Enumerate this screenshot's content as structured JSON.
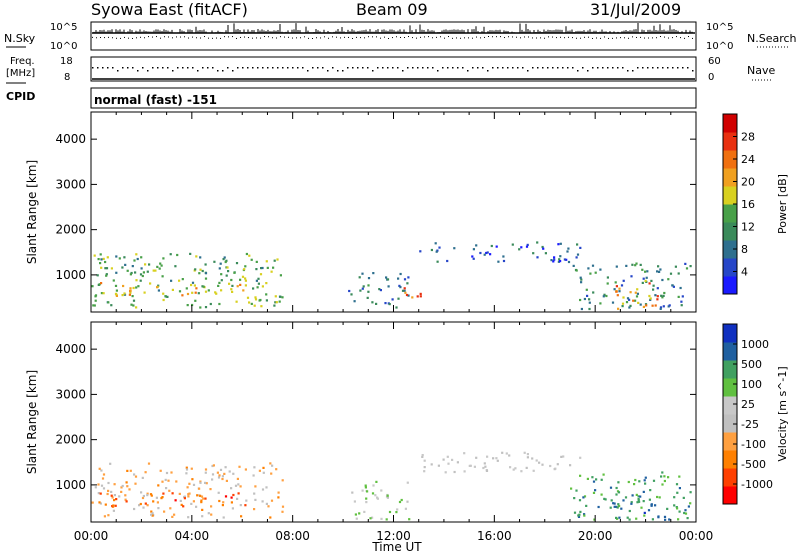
{
  "header": {
    "station": "Syowa East (fitACF)",
    "beam": "Beam 09",
    "date": "31/Jul/2009"
  },
  "top_panels": {
    "nsky_label": "N.Sky",
    "nsky_tick_top": "10^5",
    "nsky_tick_bottom": "10^0",
    "nsky_right_top": "10^5",
    "nsky_right_bottom": "10^0",
    "nsearch_label": "N.Search",
    "freq_label_line1": "Freq.",
    "freq_label_line2": "[MHz]",
    "freq_tick_top": "18",
    "freq_tick_bottom": "8",
    "nave_tick_top": "60",
    "nave_tick_bottom": "0",
    "nave_label": "Nave",
    "cpid_label": "CPID",
    "cpid_value": "normal (fast) -151"
  },
  "colors": {
    "power_scale": [
      "#1a1aff",
      "#2646c8",
      "#2e6f8e",
      "#3a8a5a",
      "#48a048",
      "#d8d020",
      "#f0a020",
      "#f07010",
      "#e83010",
      "#d00000"
    ],
    "velocity_scale": [
      "#ff0000",
      "#ff4000",
      "#ff8000",
      "#ffa040",
      "#c0c0c0",
      "#c8c8c8",
      "#60c040",
      "#40a060",
      "#2060a0",
      "#1030c0"
    ]
  },
  "chart_data": [
    {
      "type": "heatmap",
      "title": "",
      "ylabel": "Slant Range [km]",
      "xlabel": "",
      "yticks": [
        "1000",
        "2000",
        "3000",
        "4000"
      ],
      "ylim": [
        180,
        4600
      ],
      "colorbar_label": "Power [dB]",
      "colorbar_ticks": [
        "4",
        "8",
        "12",
        "16",
        "20",
        "24",
        "28"
      ],
      "colorbar_range": [
        0,
        32
      ],
      "regions": [
        {
          "t0": 0.0,
          "t1": 7.6,
          "r0": 300,
          "r1": 1500,
          "v": 14
        },
        {
          "t0": 0.3,
          "t1": 6.2,
          "r0": 550,
          "r1": 850,
          "v": 20
        },
        {
          "t0": 0.0,
          "t1": 2.0,
          "r0": 1000,
          "r1": 1500,
          "v": 12
        },
        {
          "t0": 10.2,
          "t1": 12.6,
          "r0": 250,
          "r1": 1100,
          "v": 8
        },
        {
          "t0": 12.3,
          "t1": 13.2,
          "r0": 400,
          "r1": 800,
          "v": 24
        },
        {
          "t0": 13.0,
          "t1": 19.5,
          "r0": 1300,
          "r1": 1750,
          "v": 6
        },
        {
          "t0": 19.0,
          "t1": 23.8,
          "r0": 250,
          "r1": 1300,
          "v": 10
        },
        {
          "t0": 20.5,
          "t1": 22.5,
          "r0": 250,
          "r1": 900,
          "v": 22
        }
      ]
    },
    {
      "type": "heatmap",
      "title": "",
      "ylabel": "Slant Range [km]",
      "xlabel": "Time UT",
      "xticks": [
        "00:00",
        "04:00",
        "08:00",
        "12:00",
        "16:00",
        "20:00",
        "00:00"
      ],
      "yticks": [
        "1000",
        "2000",
        "3000",
        "4000"
      ],
      "ylim": [
        180,
        4600
      ],
      "colorbar_label": "Velocity [m s^-1]",
      "colorbar_ticks": [
        "-1000",
        "-500",
        "-100",
        "-25",
        "25",
        "100",
        "500",
        "1000"
      ],
      "colorbar_range": [
        -1250,
        1250
      ],
      "regions": [
        {
          "t0": 0.0,
          "t1": 7.6,
          "r0": 300,
          "r1": 1500,
          "v": -300
        },
        {
          "t0": 0.3,
          "t1": 6.2,
          "r0": 550,
          "r1": 850,
          "v": -800
        },
        {
          "t0": 10.2,
          "t1": 12.6,
          "r0": 250,
          "r1": 1100,
          "v": 200
        },
        {
          "t0": 13.0,
          "t1": 19.5,
          "r0": 1300,
          "r1": 1750,
          "v": 0
        },
        {
          "t0": 19.0,
          "t1": 23.8,
          "r0": 250,
          "r1": 1300,
          "v": 600
        },
        {
          "t0": 20.5,
          "t1": 22.5,
          "r0": 250,
          "r1": 900,
          "v": 800
        }
      ]
    }
  ]
}
